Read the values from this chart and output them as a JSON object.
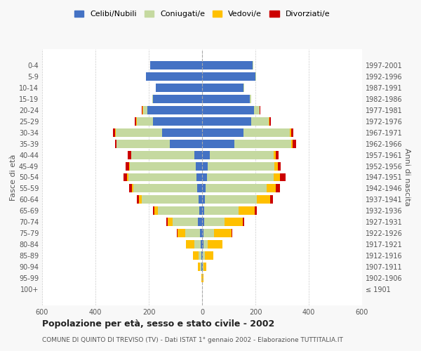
{
  "age_groups": [
    "100+",
    "95-99",
    "90-94",
    "85-89",
    "80-84",
    "75-79",
    "70-74",
    "65-69",
    "60-64",
    "55-59",
    "50-54",
    "45-49",
    "40-44",
    "35-39",
    "30-34",
    "25-29",
    "20-24",
    "15-19",
    "10-14",
    "5-9",
    "0-4"
  ],
  "birth_years": [
    "≤ 1901",
    "1902-1906",
    "1907-1911",
    "1912-1916",
    "1917-1921",
    "1922-1926",
    "1927-1931",
    "1932-1936",
    "1937-1941",
    "1942-1946",
    "1947-1951",
    "1952-1956",
    "1957-1961",
    "1962-1966",
    "1967-1971",
    "1972-1976",
    "1977-1981",
    "1982-1986",
    "1987-1991",
    "1992-1996",
    "1997-2001"
  ],
  "male": {
    "celibi": [
      0,
      0,
      2,
      3,
      5,
      8,
      15,
      10,
      12,
      18,
      22,
      25,
      30,
      120,
      150,
      185,
      205,
      185,
      175,
      210,
      195
    ],
    "coniugati": [
      0,
      1,
      5,
      10,
      25,
      55,
      95,
      155,
      215,
      240,
      255,
      245,
      235,
      200,
      175,
      60,
      15,
      2,
      0,
      0,
      0
    ],
    "vedovi": [
      0,
      2,
      8,
      20,
      30,
      30,
      20,
      15,
      10,
      5,
      5,
      3,
      2,
      2,
      2,
      3,
      3,
      0,
      0,
      0,
      0
    ],
    "divorziati": [
      0,
      0,
      0,
      0,
      0,
      2,
      5,
      5,
      8,
      12,
      12,
      15,
      12,
      5,
      8,
      5,
      3,
      0,
      0,
      0,
      0
    ]
  },
  "female": {
    "nubili": [
      0,
      0,
      2,
      3,
      4,
      5,
      8,
      8,
      10,
      12,
      18,
      22,
      28,
      120,
      155,
      185,
      195,
      180,
      155,
      200,
      190
    ],
    "coniugate": [
      0,
      1,
      4,
      8,
      18,
      40,
      75,
      130,
      195,
      230,
      250,
      250,
      240,
      215,
      175,
      65,
      20,
      5,
      2,
      2,
      2
    ],
    "vedove": [
      0,
      3,
      10,
      30,
      55,
      65,
      70,
      60,
      50,
      35,
      25,
      12,
      8,
      5,
      3,
      3,
      2,
      0,
      0,
      0,
      0
    ],
    "divorziate": [
      0,
      0,
      0,
      0,
      0,
      2,
      5,
      8,
      12,
      15,
      20,
      12,
      12,
      12,
      8,
      5,
      2,
      0,
      0,
      0,
      0
    ]
  },
  "colors": {
    "celibi_nubili": "#4472c4",
    "coniugati": "#c5d9a0",
    "vedovi": "#ffc000",
    "divorziati": "#cc0000"
  },
  "xlim": 600,
  "title": "Popolazione per età, sesso e stato civile - 2002",
  "subtitle": "COMUNE DI QUINTO DI TREVISO (TV) - Dati ISTAT 1° gennaio 2002 - Elaborazione TUTTITALIA.IT",
  "ylabel_left": "Fasce di età",
  "ylabel_right": "Anni di nascita",
  "legend_labels": [
    "Celibi/Nubili",
    "Coniugati/e",
    "Vedovi/e",
    "Divorziati/e"
  ],
  "bg_color": "#f8f8f8",
  "plot_bg": "#ffffff"
}
